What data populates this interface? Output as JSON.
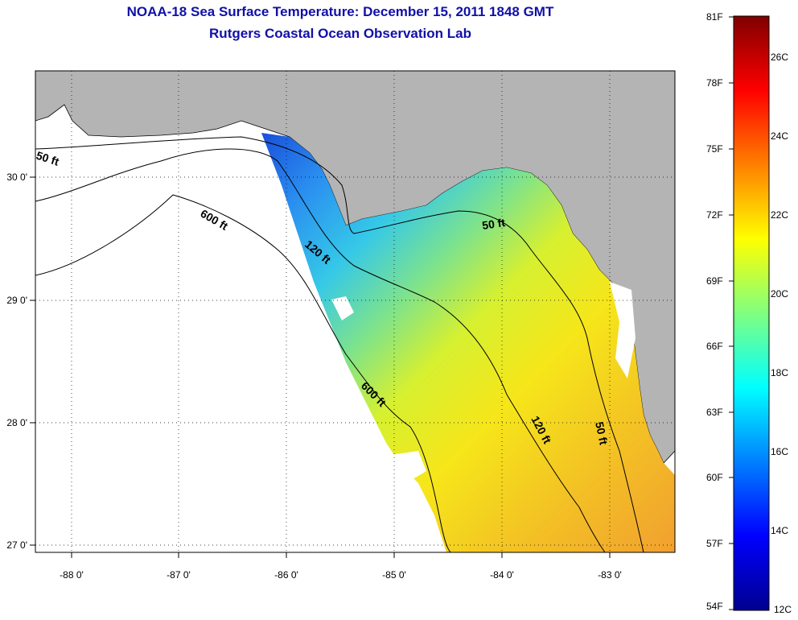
{
  "title": "NOAA-18 Sea Surface Temperature:  December 15, 2011 1848 GMT",
  "subtitle": "Rutgers Coastal Ocean Observation Lab",
  "axes": {
    "lon_ticks": [
      "-88 0'",
      "-87 0'",
      "-86 0'",
      "-85 0'",
      "-84 0'",
      "-83 0'"
    ],
    "lat_ticks": [
      "30 0'",
      "29 0'",
      "28 0'",
      "27 0'"
    ]
  },
  "contours": {
    "label_50": "50 ft",
    "label_120": "120 ft",
    "label_600": "600 ft"
  },
  "colorbar": {
    "fahrenheit": [
      "81F",
      "78F",
      "75F",
      "72F",
      "69F",
      "66F",
      "63F",
      "60F",
      "57F",
      "54F"
    ],
    "celsius": [
      "26C",
      "24C",
      "22C",
      "20C",
      "18C",
      "16C",
      "14C",
      "12C"
    ],
    "colors": [
      "#7f0000",
      "#ff0000",
      "#ff8000",
      "#ffff00",
      "#80ff80",
      "#00ffff",
      "#0080ff",
      "#0000ff",
      "#00008f"
    ]
  },
  "colors": {
    "land": "#b4b4b4",
    "water_nodata": "#ffffff",
    "title": "#1010a8"
  }
}
